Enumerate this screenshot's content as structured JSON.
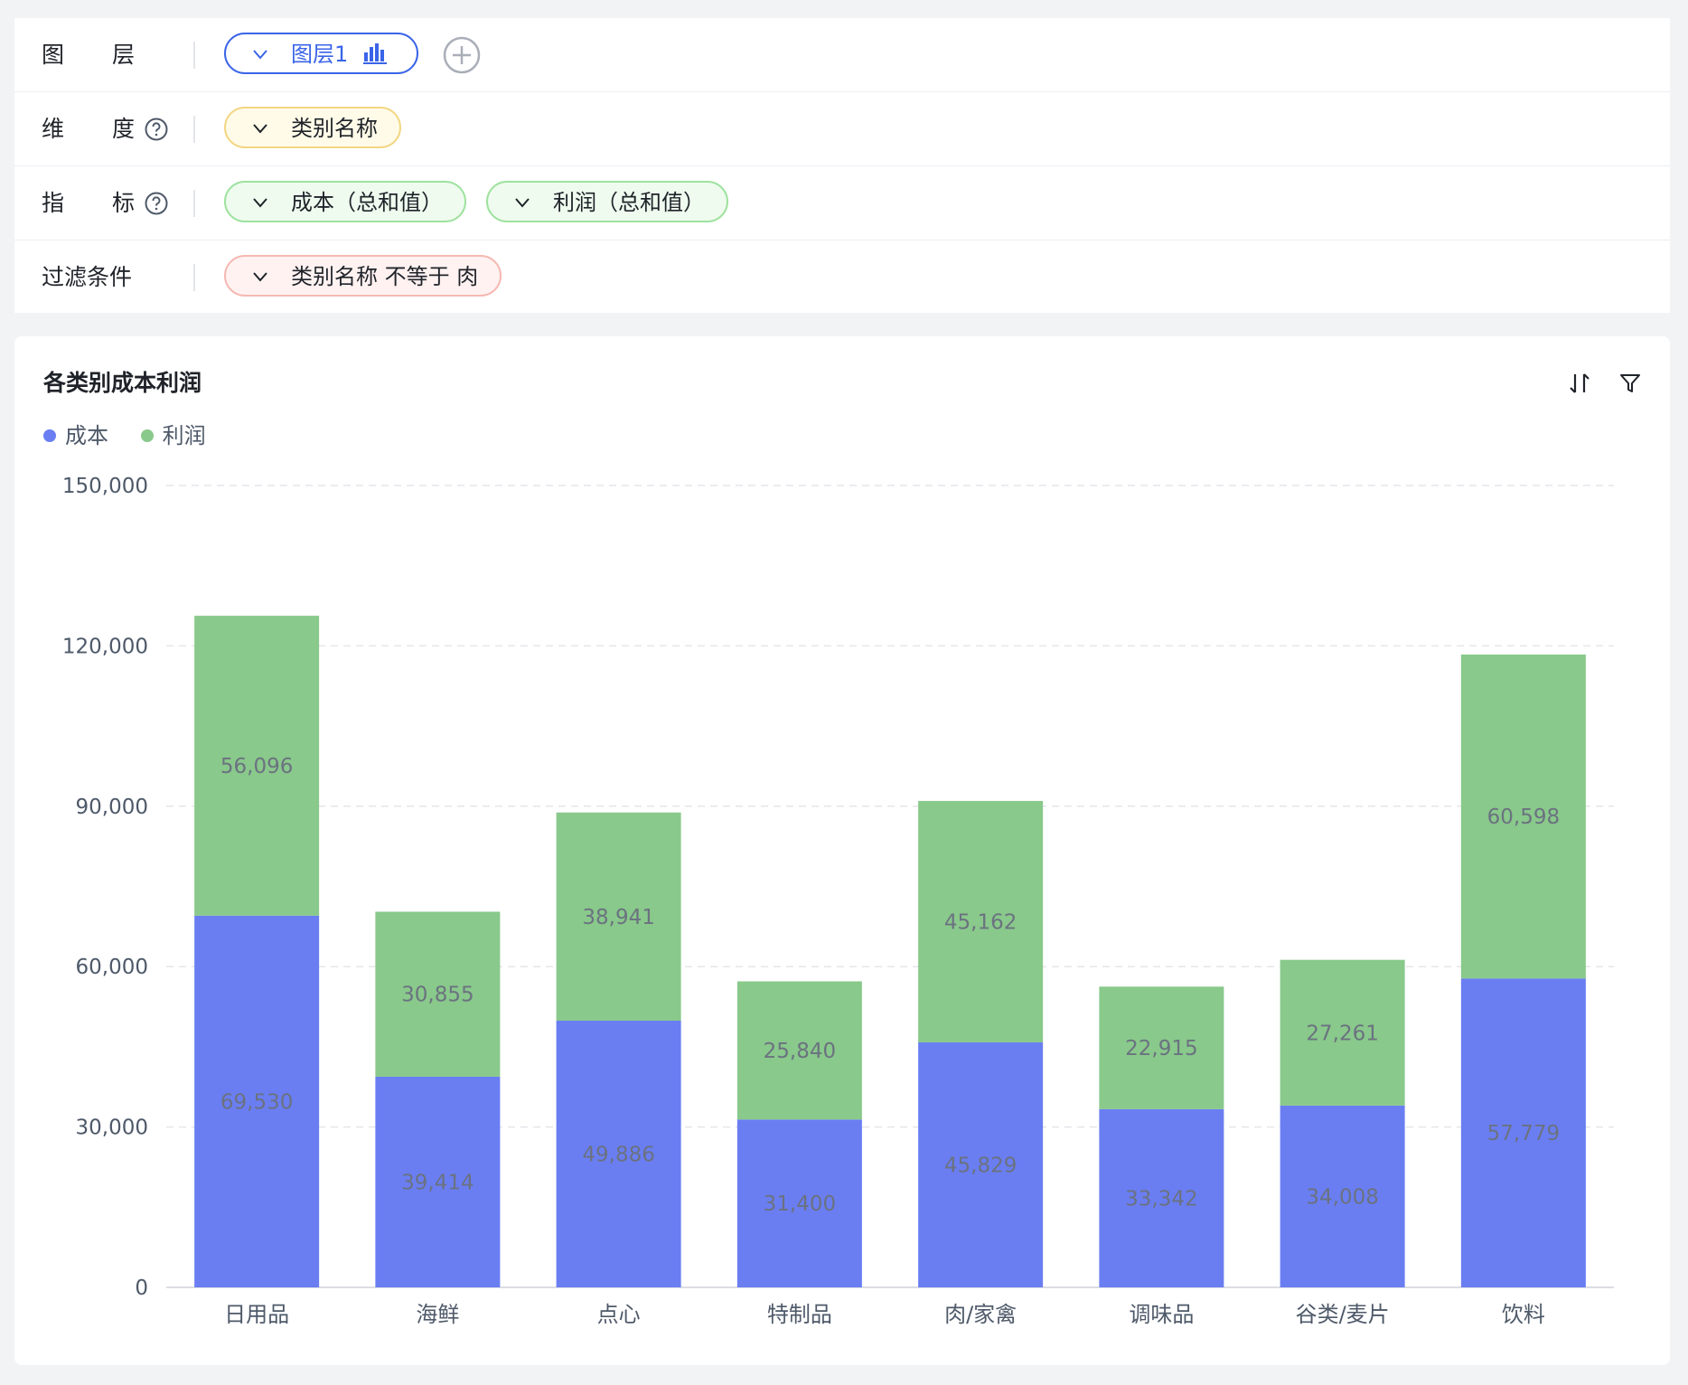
{
  "config": {
    "layer": {
      "label_c1": "图",
      "label_c2": "层",
      "pill": "图层1",
      "pill_icon": "bar-chart-icon"
    },
    "dimension": {
      "label_c1": "维",
      "label_c2": "度",
      "pill": "类别名称"
    },
    "metric": {
      "label_c1": "指",
      "label_c2": "标",
      "pills": [
        "成本（总和值）",
        "利润（总和值）"
      ]
    },
    "filter": {
      "label": "过滤条件",
      "pill": "类别名称 不等于 肉"
    }
  },
  "colors": {
    "cost": "#6a7ef2",
    "profit": "#89c98b",
    "accent": "#3a64e8"
  },
  "chart_data": {
    "type": "bar",
    "stacked": true,
    "title": "各类别成本利润",
    "categories": [
      "日用品",
      "海鲜",
      "点心",
      "特制品",
      "肉/家禽",
      "调味品",
      "谷类/麦片",
      "饮料"
    ],
    "series": [
      {
        "name": "成本",
        "values": [
          69530,
          39414,
          49886,
          31400,
          45829,
          33342,
          34008,
          57779
        ]
      },
      {
        "name": "利润",
        "values": [
          56096,
          30855,
          38941,
          25840,
          45162,
          22915,
          27261,
          60598
        ]
      }
    ],
    "value_labels": {
      "成本": [
        "69,530",
        "39,414",
        "49,886",
        "31,400",
        "45,829",
        "33,342",
        "34,008",
        "57,779"
      ],
      "利润": [
        "56,096",
        "30,855",
        "38,941",
        "25,840",
        "45,162",
        "22,915",
        "27,261",
        "60,598"
      ]
    },
    "yticks": [
      "0",
      "30,000",
      "60,000",
      "90,000",
      "120,000",
      "150,000"
    ],
    "ylim": [
      0,
      150000
    ],
    "xlabel": "",
    "ylabel": "",
    "grid": true,
    "legend": "top-left"
  }
}
